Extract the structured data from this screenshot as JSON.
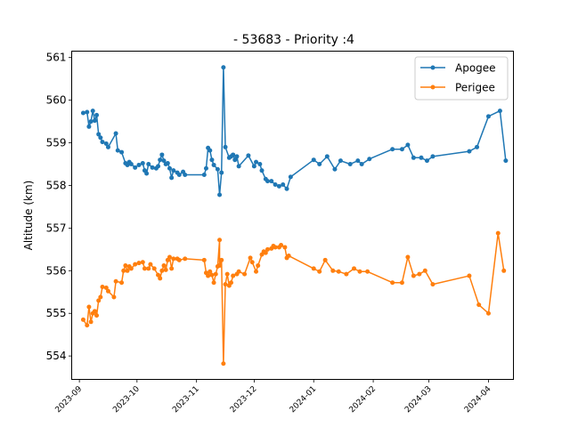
{
  "chart_data": {
    "type": "line",
    "title": "- 53683 - Priority :4",
    "xlabel": "",
    "ylabel": "Altitude (km)",
    "xlim": [
      "2023-08-28",
      "2024-04-14"
    ],
    "ylim": [
      553.45,
      561.15
    ],
    "x_ticks": [
      "2023-09",
      "2023-10",
      "2023-11",
      "2023-12",
      "2024-01",
      "2024-02",
      "2024-03",
      "2024-04"
    ],
    "y_ticks": [
      554,
      555,
      556,
      557,
      558,
      559,
      560,
      561
    ],
    "grid": false,
    "legend": "top-right",
    "series": [
      {
        "name": "Apogee",
        "color": "#1f77b4",
        "points": [
          [
            "2023-09-03",
            559.7
          ],
          [
            "2023-09-05",
            559.72
          ],
          [
            "2023-09-06",
            559.38
          ],
          [
            "2023-09-07",
            559.5
          ],
          [
            "2023-09-08",
            559.75
          ],
          [
            "2023-09-09",
            559.52
          ],
          [
            "2023-09-10",
            559.65
          ],
          [
            "2023-09-11",
            559.2
          ],
          [
            "2023-09-12",
            559.12
          ],
          [
            "2023-09-13",
            559.02
          ],
          [
            "2023-09-15",
            558.98
          ],
          [
            "2023-09-16",
            558.9
          ],
          [
            "2023-09-20",
            559.22
          ],
          [
            "2023-09-21",
            558.82
          ],
          [
            "2023-09-23",
            558.78
          ],
          [
            "2023-09-25",
            558.52
          ],
          [
            "2023-09-26",
            558.48
          ],
          [
            "2023-09-27",
            558.55
          ],
          [
            "2023-09-28",
            558.5
          ],
          [
            "2023-09-30",
            558.42
          ],
          [
            "2023-10-02",
            558.48
          ],
          [
            "2023-10-04",
            558.52
          ],
          [
            "2023-10-05",
            558.35
          ],
          [
            "2023-10-06",
            558.28
          ],
          [
            "2023-10-07",
            558.5
          ],
          [
            "2023-10-09",
            558.42
          ],
          [
            "2023-10-11",
            558.4
          ],
          [
            "2023-10-12",
            558.45
          ],
          [
            "2023-10-13",
            558.6
          ],
          [
            "2023-10-14",
            558.72
          ],
          [
            "2023-10-15",
            558.58
          ],
          [
            "2023-10-16",
            558.5
          ],
          [
            "2023-10-17",
            558.52
          ],
          [
            "2023-10-18",
            558.4
          ],
          [
            "2023-10-19",
            558.18
          ],
          [
            "2023-10-20",
            558.35
          ],
          [
            "2023-10-22",
            558.3
          ],
          [
            "2023-10-23",
            558.25
          ],
          [
            "2023-10-25",
            558.32
          ],
          [
            "2023-10-26",
            558.25
          ],
          [
            "2023-11-05",
            558.25
          ],
          [
            "2023-11-06",
            558.4
          ],
          [
            "2023-11-07",
            558.88
          ],
          [
            "2023-11-08",
            558.82
          ],
          [
            "2023-11-09",
            558.6
          ],
          [
            "2023-11-10",
            558.48
          ],
          [
            "2023-11-12",
            558.38
          ],
          [
            "2023-11-13",
            557.78
          ],
          [
            "2023-11-14",
            558.3
          ],
          [
            "2023-11-15",
            560.77
          ],
          [
            "2023-11-16",
            558.9
          ],
          [
            "2023-11-18",
            558.65
          ],
          [
            "2023-11-19",
            558.68
          ],
          [
            "2023-11-20",
            558.72
          ],
          [
            "2023-11-21",
            558.6
          ],
          [
            "2023-11-22",
            558.68
          ],
          [
            "2023-11-23",
            558.45
          ],
          [
            "2023-11-28",
            558.7
          ],
          [
            "2023-12-01",
            558.45
          ],
          [
            "2023-12-02",
            558.55
          ],
          [
            "2023-12-04",
            558.5
          ],
          [
            "2023-12-05",
            558.35
          ],
          [
            "2023-12-07",
            558.15
          ],
          [
            "2023-12-08",
            558.1
          ],
          [
            "2023-12-10",
            558.1
          ],
          [
            "2023-12-12",
            558.02
          ],
          [
            "2023-12-14",
            557.98
          ],
          [
            "2023-12-16",
            558.02
          ],
          [
            "2023-12-18",
            557.92
          ],
          [
            "2023-12-20",
            558.2
          ],
          [
            "2024-01-01",
            558.6
          ],
          [
            "2024-01-04",
            558.5
          ],
          [
            "2024-01-08",
            558.68
          ],
          [
            "2024-01-12",
            558.38
          ],
          [
            "2024-01-15",
            558.58
          ],
          [
            "2024-01-20",
            558.5
          ],
          [
            "2024-01-24",
            558.58
          ],
          [
            "2024-01-26",
            558.5
          ],
          [
            "2024-01-30",
            558.62
          ],
          [
            "2024-02-11",
            558.85
          ],
          [
            "2024-02-16",
            558.85
          ],
          [
            "2024-02-19",
            558.95
          ],
          [
            "2024-02-22",
            558.65
          ],
          [
            "2024-02-26",
            558.65
          ],
          [
            "2024-02-29",
            558.58
          ],
          [
            "2024-03-03",
            558.68
          ],
          [
            "2024-03-22",
            558.8
          ],
          [
            "2024-03-26",
            558.9
          ],
          [
            "2024-04-01",
            559.62
          ],
          [
            "2024-04-07",
            559.75
          ],
          [
            "2024-04-10",
            558.58
          ]
        ]
      },
      {
        "name": "Perigee",
        "color": "#ff7f0e",
        "points": [
          [
            "2023-09-03",
            554.85
          ],
          [
            "2023-09-05",
            554.72
          ],
          [
            "2023-09-06",
            555.15
          ],
          [
            "2023-09-07",
            554.8
          ],
          [
            "2023-09-08",
            555.0
          ],
          [
            "2023-09-09",
            555.05
          ],
          [
            "2023-09-10",
            554.95
          ],
          [
            "2023-09-11",
            555.3
          ],
          [
            "2023-09-12",
            555.38
          ],
          [
            "2023-09-13",
            555.62
          ],
          [
            "2023-09-15",
            555.6
          ],
          [
            "2023-09-16",
            555.52
          ],
          [
            "2023-09-19",
            555.38
          ],
          [
            "2023-09-20",
            555.75
          ],
          [
            "2023-09-23",
            555.72
          ],
          [
            "2023-09-24",
            556.0
          ],
          [
            "2023-09-25",
            556.12
          ],
          [
            "2023-09-26",
            556.0
          ],
          [
            "2023-09-27",
            556.1
          ],
          [
            "2023-09-28",
            556.05
          ],
          [
            "2023-09-30",
            556.15
          ],
          [
            "2023-10-02",
            556.18
          ],
          [
            "2023-10-04",
            556.2
          ],
          [
            "2023-10-05",
            556.05
          ],
          [
            "2023-10-07",
            556.05
          ],
          [
            "2023-10-08",
            556.15
          ],
          [
            "2023-10-10",
            556.05
          ],
          [
            "2023-10-12",
            555.9
          ],
          [
            "2023-10-13",
            555.82
          ],
          [
            "2023-10-14",
            556.0
          ],
          [
            "2023-10-15",
            556.12
          ],
          [
            "2023-10-16",
            556.02
          ],
          [
            "2023-10-17",
            556.25
          ],
          [
            "2023-10-18",
            556.32
          ],
          [
            "2023-10-19",
            556.05
          ],
          [
            "2023-10-20",
            556.28
          ],
          [
            "2023-10-22",
            556.28
          ],
          [
            "2023-10-23",
            556.25
          ],
          [
            "2023-10-26",
            556.28
          ],
          [
            "2023-11-05",
            556.25
          ],
          [
            "2023-11-06",
            555.95
          ],
          [
            "2023-11-07",
            555.88
          ],
          [
            "2023-11-08",
            555.98
          ],
          [
            "2023-11-09",
            555.9
          ],
          [
            "2023-11-10",
            555.72
          ],
          [
            "2023-11-11",
            555.92
          ],
          [
            "2023-11-12",
            556.1
          ],
          [
            "2023-11-13",
            556.72
          ],
          [
            "2023-11-13",
            556.12
          ],
          [
            "2023-11-14",
            556.25
          ],
          [
            "2023-11-15",
            553.82
          ],
          [
            "2023-11-16",
            555.68
          ],
          [
            "2023-11-17",
            555.92
          ],
          [
            "2023-11-18",
            555.65
          ],
          [
            "2023-11-19",
            555.72
          ],
          [
            "2023-11-20",
            555.88
          ],
          [
            "2023-11-22",
            555.92
          ],
          [
            "2023-11-23",
            555.98
          ],
          [
            "2023-11-26",
            555.92
          ],
          [
            "2023-11-29",
            556.3
          ],
          [
            "2023-11-30",
            556.2
          ],
          [
            "2023-12-02",
            555.98
          ],
          [
            "2023-12-03",
            556.12
          ],
          [
            "2023-12-05",
            556.38
          ],
          [
            "2023-12-06",
            556.45
          ],
          [
            "2023-12-07",
            556.42
          ],
          [
            "2023-12-08",
            556.5
          ],
          [
            "2023-12-10",
            556.52
          ],
          [
            "2023-12-11",
            556.58
          ],
          [
            "2023-12-12",
            556.55
          ],
          [
            "2023-12-14",
            556.55
          ],
          [
            "2023-12-15",
            556.6
          ],
          [
            "2023-12-17",
            556.55
          ],
          [
            "2023-12-18",
            556.3
          ],
          [
            "2023-12-19",
            556.35
          ],
          [
            "2024-01-01",
            556.05
          ],
          [
            "2024-01-04",
            555.98
          ],
          [
            "2024-01-07",
            556.25
          ],
          [
            "2024-01-11",
            556.0
          ],
          [
            "2024-01-14",
            555.98
          ],
          [
            "2024-01-18",
            555.92
          ],
          [
            "2024-01-22",
            556.05
          ],
          [
            "2024-01-25",
            555.98
          ],
          [
            "2024-01-29",
            555.98
          ],
          [
            "2024-02-11",
            555.72
          ],
          [
            "2024-02-16",
            555.72
          ],
          [
            "2024-02-19",
            556.32
          ],
          [
            "2024-02-22",
            555.88
          ],
          [
            "2024-02-25",
            555.92
          ],
          [
            "2024-02-28",
            556.0
          ],
          [
            "2024-03-03",
            555.68
          ],
          [
            "2024-03-22",
            555.88
          ],
          [
            "2024-03-27",
            555.2
          ],
          [
            "2024-04-01",
            555.0
          ],
          [
            "2024-04-06",
            556.88
          ],
          [
            "2024-04-09",
            556.0
          ]
        ]
      }
    ]
  }
}
